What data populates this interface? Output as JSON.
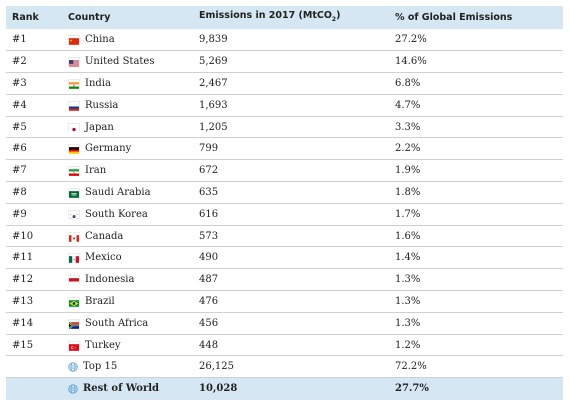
{
  "table": {
    "headers": {
      "rank": "Rank",
      "country": "Country",
      "emissions": "Emissions in 2017 (MtCO",
      "emissions_sub": "2",
      "emissions_close": ")",
      "pct": "% of Global Emissions"
    },
    "rows": [
      {
        "rank": "#1",
        "country": "China",
        "emissions": "9,839",
        "pct": "27.2%",
        "flag": "china-flag-icon"
      },
      {
        "rank": "#2",
        "country": "United States",
        "emissions": "5,269",
        "pct": "14.6%",
        "flag": "united-states-flag-icon"
      },
      {
        "rank": "#3",
        "country": "India",
        "emissions": "2,467",
        "pct": "6.8%",
        "flag": "india-flag-icon"
      },
      {
        "rank": "#4",
        "country": "Russia",
        "emissions": "1,693",
        "pct": "4.7%",
        "flag": "russia-flag-icon"
      },
      {
        "rank": "#5",
        "country": "Japan",
        "emissions": "1,205",
        "pct": "3.3%",
        "flag": "japan-flag-icon"
      },
      {
        "rank": "#6",
        "country": "Germany",
        "emissions": "799",
        "pct": "2.2%",
        "flag": "germany-flag-icon"
      },
      {
        "rank": "#7",
        "country": "Iran",
        "emissions": "672",
        "pct": "1.9%",
        "flag": "iran-flag-icon"
      },
      {
        "rank": "#8",
        "country": "Saudi Arabia",
        "emissions": "635",
        "pct": "1.8%",
        "flag": "saudi-arabia-flag-icon"
      },
      {
        "rank": "#9",
        "country": "South Korea",
        "emissions": "616",
        "pct": "1.7%",
        "flag": "south-korea-flag-icon"
      },
      {
        "rank": "#10",
        "country": "Canada",
        "emissions": "573",
        "pct": "1.6%",
        "flag": "canada-flag-icon"
      },
      {
        "rank": "#11",
        "country": "Mexico",
        "emissions": "490",
        "pct": "1.4%",
        "flag": "mexico-flag-icon"
      },
      {
        "rank": "#12",
        "country": "Indonesia",
        "emissions": "487",
        "pct": "1.3%",
        "flag": "indonesia-flag-icon"
      },
      {
        "rank": "#13",
        "country": "Brazil",
        "emissions": "476",
        "pct": "1.3%",
        "flag": "brazil-flag-icon"
      },
      {
        "rank": "#14",
        "country": "South Africa",
        "emissions": "456",
        "pct": "1.3%",
        "flag": "south-africa-flag-icon"
      },
      {
        "rank": "#15",
        "country": "Turkey",
        "emissions": "448",
        "pct": "1.2%",
        "flag": "turkey-flag-icon"
      },
      {
        "rank": "",
        "country": "Top 15",
        "emissions": "26,125",
        "pct": "72.2%",
        "flag": "globe-icon"
      },
      {
        "rank": "",
        "country": "Rest of World",
        "emissions": "10,028",
        "pct": "27.7%",
        "flag": "globe-icon"
      }
    ]
  },
  "colors": {
    "header_bg": "#d4e7f3",
    "highlight_row_bg": "#d4e7f3",
    "row_divider": "#d0d0d0",
    "globe": "#5a9fd4"
  }
}
